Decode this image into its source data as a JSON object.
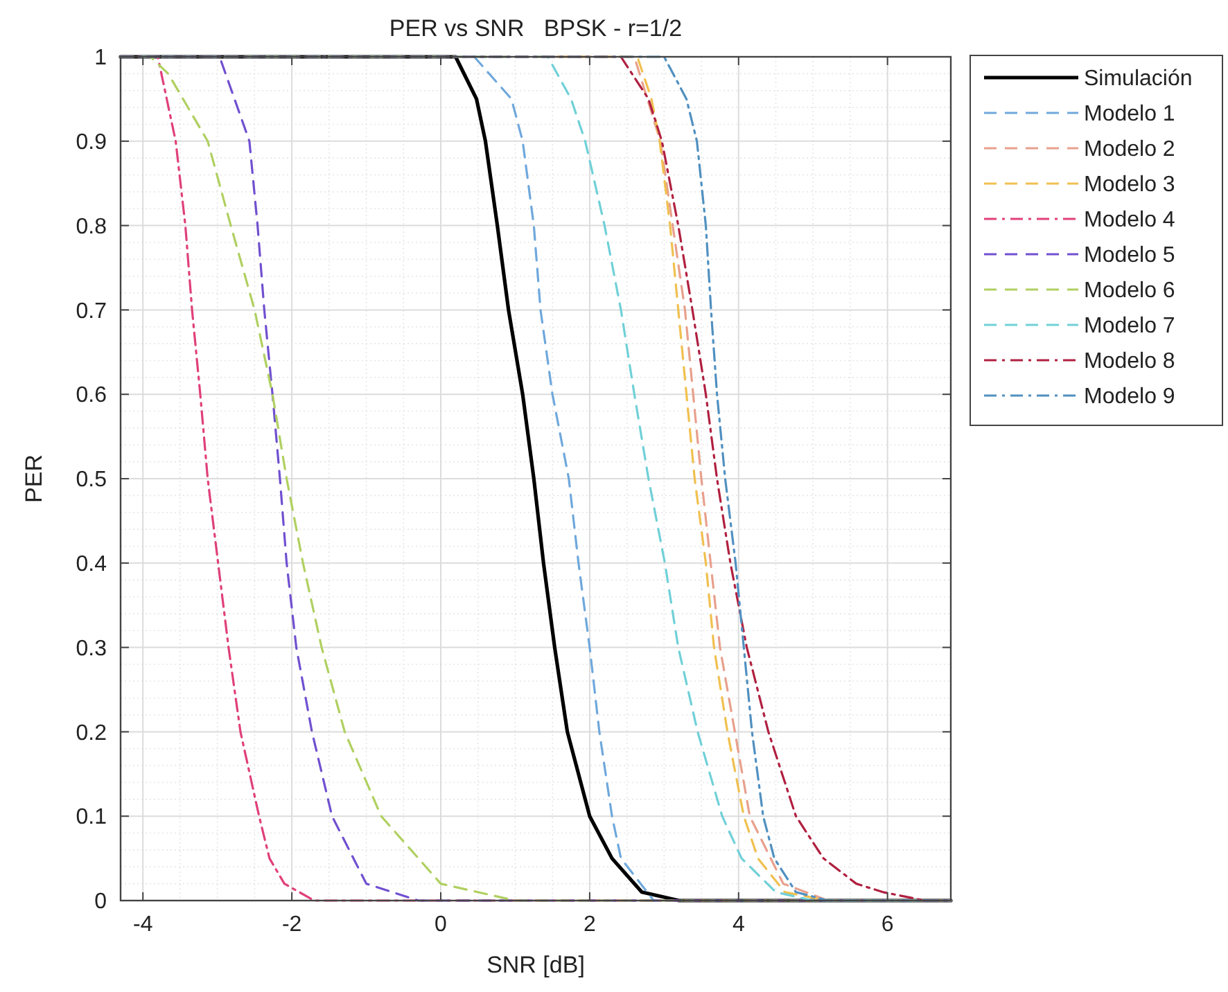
{
  "chart_data": {
    "type": "line",
    "title": "PER vs SNR   BPSK - r=1/2",
    "xlabel": "SNR [dB]",
    "ylabel": "PER",
    "xlim": [
      -4.3,
      6.85
    ],
    "xticks": [
      -4,
      -2,
      0,
      2,
      4,
      6
    ],
    "ylim": [
      0,
      1
    ],
    "yticks": [
      0,
      0.1,
      0.2,
      0.3,
      0.4,
      0.5,
      0.6,
      0.7,
      0.8,
      0.9,
      1
    ],
    "grid": true,
    "legend": "top right",
    "marker": "none",
    "series": [
      {
        "name": "Simulación",
        "color": "#000000",
        "line_style": "solid",
        "x": [
          -4.3,
          0.2,
          0.48,
          0.6,
          0.76,
          0.91,
          1.1,
          1.25,
          1.38,
          1.53,
          1.7,
          2.0,
          2.3,
          2.7,
          3.2,
          6.85
        ],
        "values": [
          1,
          1,
          0.95,
          0.9,
          0.8,
          0.7,
          0.6,
          0.5,
          0.4,
          0.3,
          0.2,
          0.1,
          0.05,
          0.01,
          0,
          0
        ]
      },
      {
        "name": "Modelo 1",
        "color": "#6fa8dc",
        "line_style": "dashed",
        "x": [
          -4.3,
          0.45,
          0.95,
          1.1,
          1.25,
          1.34,
          1.5,
          1.72,
          1.85,
          2.0,
          2.13,
          2.3,
          2.42,
          2.86,
          6.85
        ],
        "values": [
          1,
          1,
          0.95,
          0.9,
          0.8,
          0.7,
          0.6,
          0.5,
          0.4,
          0.3,
          0.2,
          0.1,
          0.05,
          0,
          0
        ]
      },
      {
        "name": "Modelo 2",
        "color": "#e8a08c",
        "line_style": "dashed",
        "x": [
          -4.3,
          2.6,
          2.95,
          3.28,
          3.5,
          3.75,
          4.15,
          4.6,
          5.2,
          6.85
        ],
        "values": [
          1,
          1,
          0.9,
          0.7,
          0.5,
          0.3,
          0.1,
          0.02,
          0,
          0
        ]
      },
      {
        "name": "Modelo 3",
        "color": "#f0c050",
        "line_style": "dashed",
        "x": [
          -4.3,
          2.64,
          2.83,
          2.94,
          3.08,
          3.19,
          3.3,
          3.41,
          3.56,
          3.67,
          3.85,
          4.07,
          4.26,
          4.62,
          5.2,
          6.85
        ],
        "values": [
          1,
          1,
          0.95,
          0.9,
          0.8,
          0.7,
          0.6,
          0.5,
          0.4,
          0.3,
          0.2,
          0.1,
          0.05,
          0.01,
          0,
          0
        ]
      },
      {
        "name": "Modelo 4",
        "color": "#e0407a",
        "line_style": "dashdot",
        "x": [
          -4.3,
          -3.8,
          -3.56,
          -3.43,
          -3.34,
          -3.23,
          -3.13,
          -2.99,
          -2.85,
          -2.69,
          -2.44,
          -2.3,
          -2.1,
          -1.7,
          6.85
        ],
        "values": [
          1,
          1,
          0.9,
          0.8,
          0.7,
          0.6,
          0.5,
          0.4,
          0.3,
          0.2,
          0.1,
          0.05,
          0.02,
          0,
          0
        ]
      },
      {
        "name": "Modelo 5",
        "color": "#7050d0",
        "line_style": "dashed",
        "x": [
          -4.3,
          -2.97,
          -2.57,
          -2.46,
          -2.37,
          -2.26,
          -2.16,
          -2.07,
          -1.94,
          -1.73,
          -1.46,
          -1.0,
          -0.3,
          6.85
        ],
        "values": [
          1,
          1,
          0.9,
          0.8,
          0.7,
          0.6,
          0.5,
          0.4,
          0.3,
          0.2,
          0.1,
          0.02,
          0,
          0
        ]
      },
      {
        "name": "Modelo 6",
        "color": "#b0d060",
        "line_style": "dashed",
        "x": [
          -4.3,
          -3.9,
          -3.66,
          -3.13,
          -2.82,
          -2.5,
          -2.26,
          -2.07,
          -1.85,
          -1.6,
          -1.29,
          -0.8,
          0.0,
          1.0,
          6.85
        ],
        "values": [
          1,
          1,
          0.98,
          0.9,
          0.8,
          0.7,
          0.6,
          0.5,
          0.4,
          0.3,
          0.2,
          0.1,
          0.02,
          0,
          0
        ]
      },
      {
        "name": "Modelo 7",
        "color": "#70d0d8",
        "line_style": "dashed",
        "x": [
          -4.3,
          1.44,
          1.75,
          1.94,
          2.2,
          2.42,
          2.6,
          2.79,
          3.01,
          3.19,
          3.45,
          3.78,
          4.04,
          4.5,
          5.0,
          6.85
        ],
        "values": [
          1,
          1,
          0.95,
          0.9,
          0.8,
          0.7,
          0.6,
          0.5,
          0.4,
          0.3,
          0.2,
          0.1,
          0.05,
          0.01,
          0,
          0
        ]
      },
      {
        "name": "Modelo 8",
        "color": "#b02040",
        "line_style": "dashdot",
        "x": [
          -4.3,
          2.42,
          2.79,
          2.97,
          3.19,
          3.38,
          3.56,
          3.71,
          3.89,
          4.11,
          4.4,
          4.77,
          5.14,
          5.58,
          5.94,
          6.5,
          6.85
        ],
        "values": [
          1,
          1,
          0.95,
          0.9,
          0.8,
          0.7,
          0.6,
          0.5,
          0.4,
          0.3,
          0.2,
          0.1,
          0.05,
          0.02,
          0.01,
          0,
          0
        ]
      },
      {
        "name": "Modelo 9",
        "color": "#5090c0",
        "line_style": "dashdot",
        "x": [
          -4.3,
          3.0,
          3.3,
          3.44,
          3.56,
          3.63,
          3.71,
          3.82,
          3.96,
          4.07,
          4.18,
          4.33,
          4.48,
          4.77,
          5.2,
          6.85
        ],
        "values": [
          1,
          1,
          0.95,
          0.9,
          0.8,
          0.7,
          0.6,
          0.5,
          0.4,
          0.3,
          0.2,
          0.1,
          0.05,
          0.01,
          0,
          0
        ]
      }
    ]
  }
}
